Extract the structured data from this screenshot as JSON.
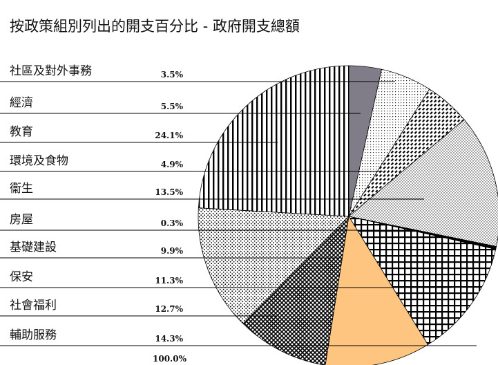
{
  "chart_data": {
    "type": "pie",
    "title": "按政策組別列出的開支百分比 - 政府開支總額",
    "categories": [
      "社區及對外事務",
      "經濟",
      "教育",
      "環境及食物",
      "衞生",
      "房屋",
      "基礎建設",
      "保安",
      "社會福利",
      "輔助服務"
    ],
    "values": [
      3.5,
      5.5,
      24.1,
      4.9,
      13.5,
      0.3,
      9.9,
      11.3,
      12.7,
      14.3
    ],
    "labels": [
      "3.5%",
      "5.5%",
      "24.1%",
      "4.9%",
      "13.5%",
      "0.3%",
      "9.9%",
      "11.3%",
      "12.7%",
      "14.3%"
    ],
    "total_label": "100.0%",
    "slice_patterns": [
      "solid-gray",
      "dots-sparse",
      "vertical-stripes",
      "dashed-diagonal",
      "dots-dense",
      "solid-black",
      "dense-grid",
      "solid-peach",
      "crosshatch",
      "dots-fine"
    ],
    "legend": "left-list"
  }
}
